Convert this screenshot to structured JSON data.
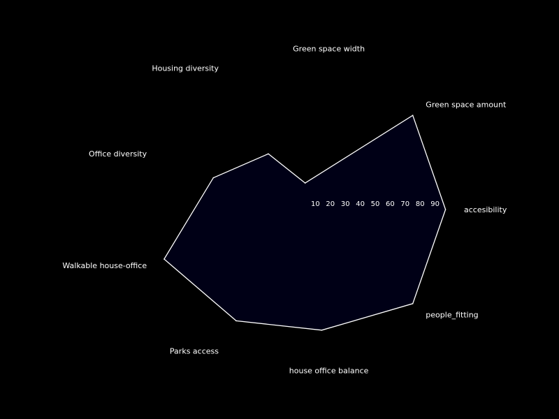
{
  "chart_data": {
    "type": "radar",
    "title": "",
    "axes": [
      "accesibility",
      "Green space amount",
      "Green space width",
      "Housing diversity",
      "Office diversity",
      "Walkable house-office",
      "Parks access",
      "house office balance",
      "people_fitting"
    ],
    "series": [
      {
        "values": [
          97,
          98,
          18,
          43,
          62,
          97,
          86,
          82,
          98
        ]
      }
    ],
    "r_ticks": [
      "10",
      "20",
      "30",
      "40",
      "50",
      "60",
      "70",
      "80",
      "90"
    ],
    "r_range": [
      0,
      100
    ],
    "grid": false,
    "legend": "none"
  },
  "colors": {
    "background": "#000000",
    "fill": "#000016",
    "line": "#ffffff",
    "text": "#ffffff"
  }
}
